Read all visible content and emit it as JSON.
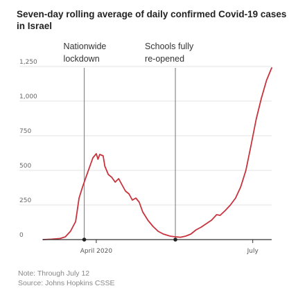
{
  "title": "Seven-day rolling average of daily confirmed Covid-19 cases in Israel",
  "notes": {
    "note": "Note: Through July 12",
    "source": "Source: Johns Hopkins CSSE"
  },
  "colors": {
    "line": "#c8323c",
    "annotation_line": "#8a8a8a",
    "grid": "#e3e3e3",
    "axis": "#333333",
    "marker": "#222222"
  },
  "chart_data": {
    "type": "line",
    "title": "Seven-day rolling average of daily confirmed Covid-19 cases in Israel",
    "xlabel": "",
    "ylabel": "",
    "ylim": [
      0,
      1250
    ],
    "yticks": [
      0,
      250,
      500,
      750,
      1000,
      1250
    ],
    "ytick_labels": [
      "0",
      "250",
      "500",
      "750",
      "1,000",
      "1,250"
    ],
    "xlim": [
      "2020-03-01",
      "2020-07-12"
    ],
    "xticks": [
      {
        "date": "2020-04-01",
        "label": "April 2020"
      },
      {
        "date": "2020-07-01",
        "label": "July"
      }
    ],
    "grid": true,
    "series": [
      {
        "points": [
          [
            "2020-03-01",
            0
          ],
          [
            "2020-03-06",
            3
          ],
          [
            "2020-03-11",
            8
          ],
          [
            "2020-03-14",
            20
          ],
          [
            "2020-03-17",
            60
          ],
          [
            "2020-03-20",
            130
          ],
          [
            "2020-03-22",
            300
          ],
          [
            "2020-03-24",
            380
          ],
          [
            "2020-03-26",
            450
          ],
          [
            "2020-03-28",
            520
          ],
          [
            "2020-03-30",
            590
          ],
          [
            "2020-04-01",
            620
          ],
          [
            "2020-04-02",
            580
          ],
          [
            "2020-04-03",
            615
          ],
          [
            "2020-04-05",
            605
          ],
          [
            "2020-04-06",
            530
          ],
          [
            "2020-04-08",
            470
          ],
          [
            "2020-04-10",
            450
          ],
          [
            "2020-04-12",
            415
          ],
          [
            "2020-04-14",
            440
          ],
          [
            "2020-04-16",
            395
          ],
          [
            "2020-04-18",
            350
          ],
          [
            "2020-04-20",
            330
          ],
          [
            "2020-04-22",
            285
          ],
          [
            "2020-04-24",
            300
          ],
          [
            "2020-04-26",
            270
          ],
          [
            "2020-04-28",
            200
          ],
          [
            "2020-05-01",
            140
          ],
          [
            "2020-05-04",
            95
          ],
          [
            "2020-05-07",
            60
          ],
          [
            "2020-05-10",
            40
          ],
          [
            "2020-05-14",
            25
          ],
          [
            "2020-05-17",
            20
          ],
          [
            "2020-05-20",
            17
          ],
          [
            "2020-05-23",
            25
          ],
          [
            "2020-05-26",
            40
          ],
          [
            "2020-05-29",
            70
          ],
          [
            "2020-06-01",
            90
          ],
          [
            "2020-06-04",
            115
          ],
          [
            "2020-06-07",
            140
          ],
          [
            "2020-06-10",
            180
          ],
          [
            "2020-06-12",
            175
          ],
          [
            "2020-06-15",
            210
          ],
          [
            "2020-06-18",
            250
          ],
          [
            "2020-06-21",
            300
          ],
          [
            "2020-06-24",
            380
          ],
          [
            "2020-06-27",
            500
          ],
          [
            "2020-06-30",
            680
          ],
          [
            "2020-07-03",
            870
          ],
          [
            "2020-07-06",
            1020
          ],
          [
            "2020-07-09",
            1150
          ],
          [
            "2020-07-12",
            1240
          ]
        ]
      }
    ],
    "annotations": [
      {
        "date": "2020-03-25",
        "text_lines": [
          "Nationwide",
          "lockdown"
        ]
      },
      {
        "date": "2020-05-17",
        "text_lines": [
          "Schools fully",
          "re-opened"
        ]
      }
    ],
    "markers": [
      {
        "date": "2020-03-25",
        "y": 0
      },
      {
        "date": "2020-05-17",
        "y": 0
      }
    ]
  }
}
